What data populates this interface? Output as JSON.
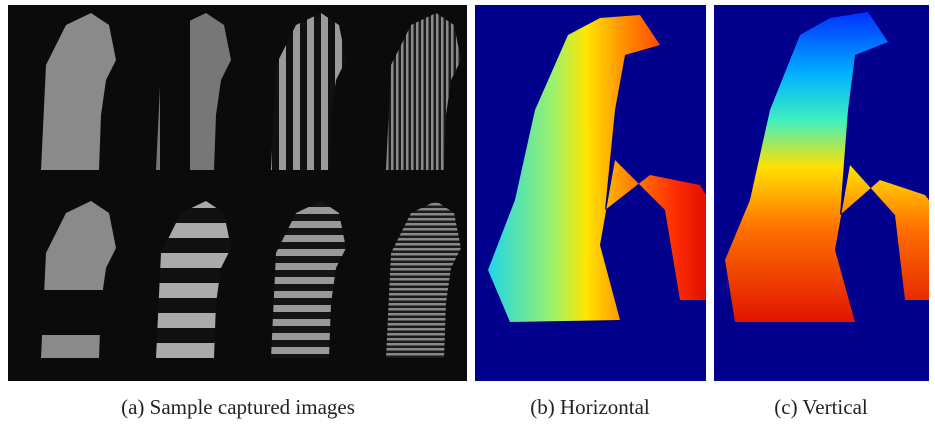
{
  "figure": {
    "captions": [
      "(a) Sample captured images",
      "(b) Horizontal",
      "(c) Vertical"
    ]
  }
}
